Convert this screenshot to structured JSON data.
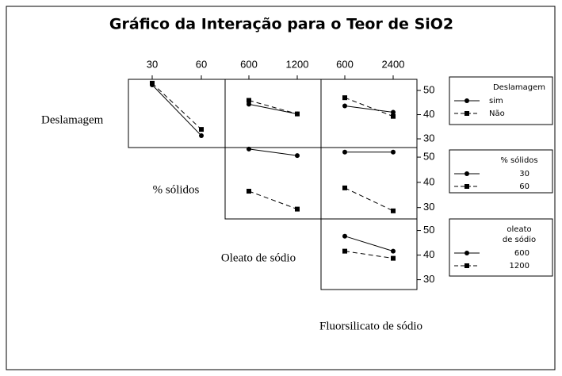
{
  "chart_data": {
    "type": "interaction",
    "title": "Gráfico da Interação para o Teor de SiO2",
    "factors": [
      {
        "label": "Deslamagem",
        "legend_title": [
          "Deslamagem"
        ],
        "levels": [
          "sim",
          "Não"
        ]
      },
      {
        "label": "% sólidos",
        "legend_title": [
          "% sólidos"
        ],
        "levels": [
          30,
          60
        ]
      },
      {
        "label": "Oleato de sódio",
        "legend_title": [
          "oleato",
          "de sódio"
        ],
        "levels": [
          600,
          1200
        ]
      },
      {
        "label": "Fluorsilicato de sódio",
        "levels": [
          600,
          2400
        ]
      }
    ],
    "rows": [
      {
        "ylim": [
          26.4,
          54.6
        ],
        "yticks": [
          30,
          40,
          50
        ]
      },
      {
        "ylim": [
          25.5,
          53.8
        ],
        "yticks": [
          30,
          40,
          50
        ]
      },
      {
        "ylim": [
          26,
          54.7
        ],
        "yticks": [
          30,
          40,
          50
        ]
      }
    ],
    "styles": [
      {
        "marker": "circle",
        "dash": "solid",
        "color": "#000000"
      },
      {
        "marker": "square",
        "dash": "dashed",
        "color": "#000000"
      }
    ],
    "panels": [
      {
        "row": 0,
        "col": 1,
        "values": [
          [
            52.3,
            31.3
          ],
          [
            53,
            33.9
          ]
        ]
      },
      {
        "row": 0,
        "col": 2,
        "values": [
          [
            44.3,
            40.3
          ],
          [
            45.9,
            40.3
          ]
        ]
      },
      {
        "row": 0,
        "col": 3,
        "values": [
          [
            43.6,
            41
          ],
          [
            47,
            39.3
          ]
        ]
      },
      {
        "row": 1,
        "col": 2,
        "values": [
          [
            53.2,
            50.6
          ],
          [
            36.5,
            29.4
          ]
        ]
      },
      {
        "row": 1,
        "col": 3,
        "values": [
          [
            52,
            52
          ],
          [
            37.8,
            28.7
          ]
        ]
      },
      {
        "row": 2,
        "col": 3,
        "values": [
          [
            47.7,
            41.6
          ],
          [
            41.6,
            38.7
          ]
        ]
      }
    ]
  }
}
